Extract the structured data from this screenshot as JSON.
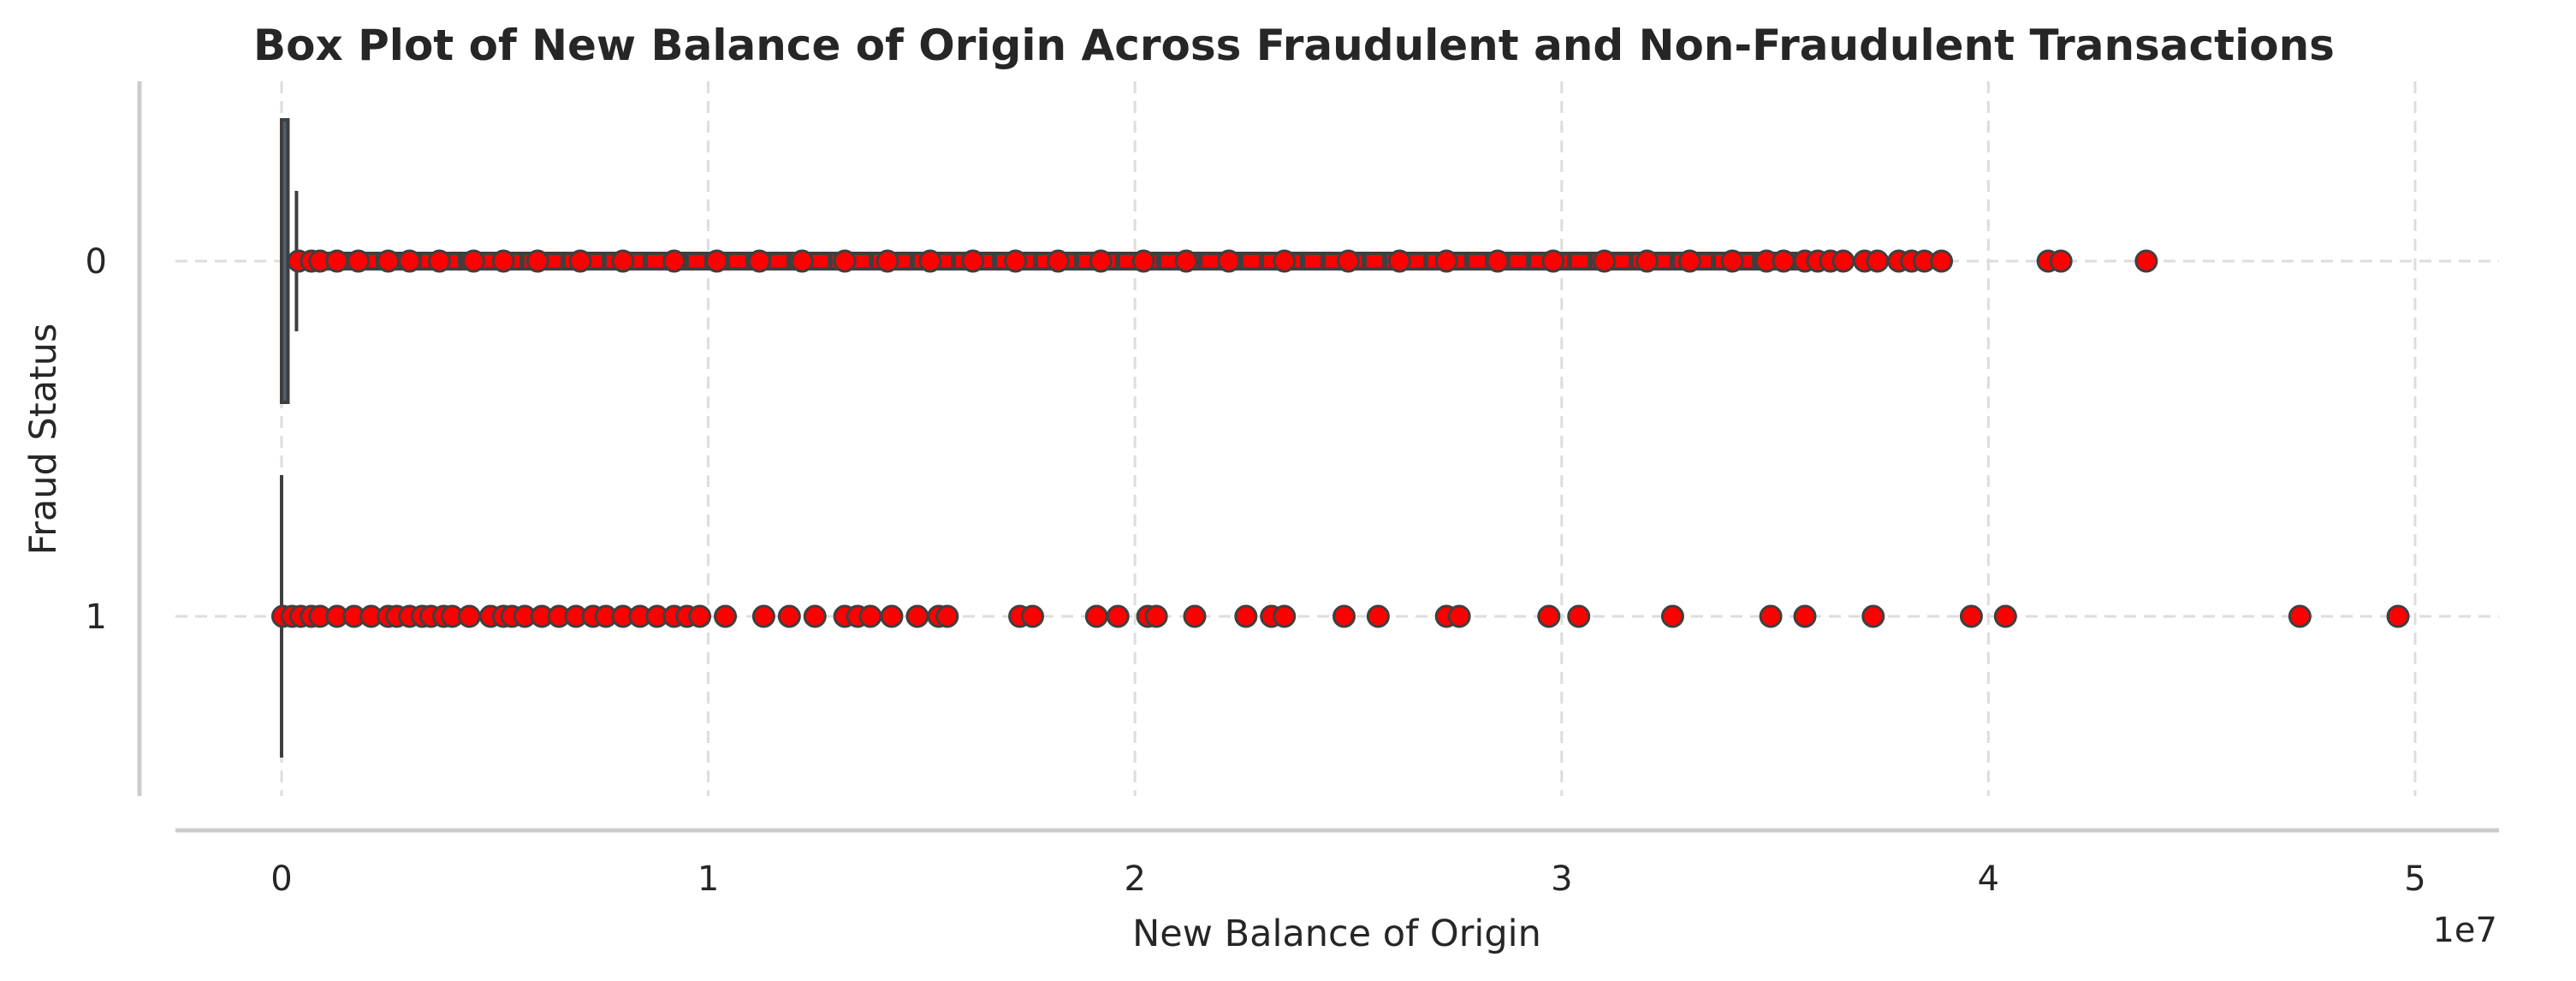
{
  "chart_data": {
    "type": "boxplot",
    "title": "Box Plot of New Balance of Origin Across Fraudulent and Non-Fraudulent Transactions",
    "xlabel": "New Balance of Origin",
    "ylabel": "Fraud Status",
    "x_offset_label": "1e7",
    "x_scale_factor": 10000000,
    "xlim": [
      -3300000,
      52000000
    ],
    "x_ticks": [
      0,
      10000000,
      20000000,
      30000000,
      40000000,
      50000000
    ],
    "x_tick_labels": [
      "0",
      "1",
      "2",
      "3",
      "4",
      "5"
    ],
    "categories": [
      "0",
      "1"
    ],
    "grid": true,
    "flier_color": "#ff0000",
    "box_color": "#4c6170",
    "line_color": "#3f3f3f",
    "series": [
      {
        "name": "0",
        "q1": 0,
        "median": 0,
        "q3": 150000,
        "whisker_low": 0,
        "whisker_high": 350000,
        "fliers": [
          400000,
          700000,
          900000,
          1300000,
          1800000,
          2500000,
          3000000,
          3700000,
          4500000,
          5200000,
          6000000,
          7000000,
          8000000,
          9200000,
          10200000,
          11200000,
          12200000,
          13200000,
          14200000,
          15200000,
          16200000,
          17200000,
          18200000,
          19200000,
          20200000,
          21200000,
          22200000,
          23500000,
          25000000,
          26200000,
          27300000,
          28500000,
          29800000,
          31000000,
          32000000,
          33000000,
          34000000,
          34800000,
          35200000,
          35700000,
          36000000,
          36300000,
          36600000,
          37100000,
          37400000,
          37900000,
          38200000,
          38500000,
          38900000,
          41400000,
          41700000,
          43700000
        ],
        "dense_range": [
          400000,
          35500000
        ]
      },
      {
        "name": "1",
        "q1": 0,
        "median": 0,
        "q3": 0,
        "whisker_low": 0,
        "whisker_high": 0,
        "fliers": [
          30000,
          250000,
          450000,
          700000,
          900000,
          1300000,
          1700000,
          2100000,
          2500000,
          2700000,
          3000000,
          3300000,
          3500000,
          3800000,
          4000000,
          4400000,
          4900000,
          5200000,
          5400000,
          5700000,
          6100000,
          6500000,
          6900000,
          7300000,
          7600000,
          8000000,
          8400000,
          8800000,
          9200000,
          9500000,
          9800000,
          10400000,
          11300000,
          11900000,
          12500000,
          13200000,
          13500000,
          13800000,
          14300000,
          14900000,
          15400000,
          15600000,
          17300000,
          17600000,
          19100000,
          19600000,
          20300000,
          20500000,
          21400000,
          22600000,
          23200000,
          23500000,
          24900000,
          25700000,
          27300000,
          27600000,
          29700000,
          30400000,
          32600000,
          34900000,
          35700000,
          37300000,
          39600000,
          40400000,
          47300000,
          49600000
        ],
        "dense_range": [
          0,
          0
        ]
      }
    ]
  }
}
